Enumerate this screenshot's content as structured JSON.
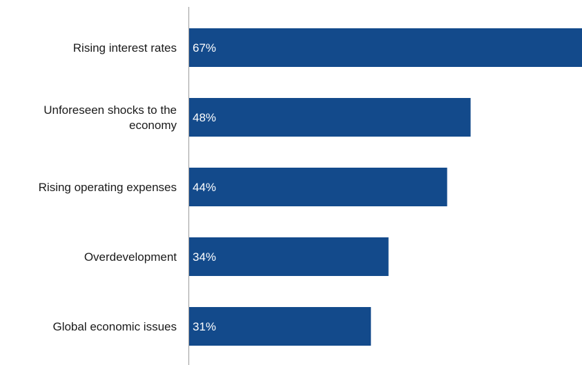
{
  "chart_data": {
    "type": "bar",
    "orientation": "horizontal",
    "categories": [
      "Rising interest rates",
      "Unforeseen shocks to the economy",
      "Rising operating expenses",
      "Overdevelopment",
      "Global economic issues"
    ],
    "category_lines": [
      [
        "Rising interest rates"
      ],
      [
        "Unforeseen shocks to the",
        "economy"
      ],
      [
        "Rising operating expenses"
      ],
      [
        "Overdevelopment"
      ],
      [
        "Global economic issues"
      ]
    ],
    "values": [
      67,
      48,
      44,
      34,
      31
    ],
    "value_labels": [
      "67%",
      "48%",
      "44%",
      "34%",
      "31%"
    ],
    "xlim": [
      0,
      67
    ],
    "bar_color": "#134a8b",
    "grid": false,
    "legend": "none"
  }
}
